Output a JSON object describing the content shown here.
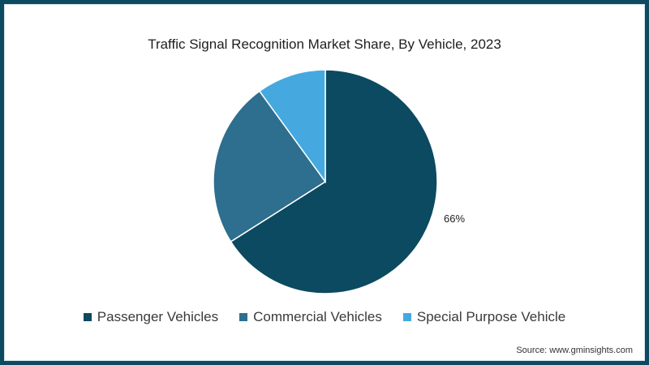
{
  "chart": {
    "title": "Traffic Signal Recognition Market Share, By Vehicle, 2023",
    "source": "Source: www.gminsights.com",
    "data_label": "66%",
    "legend": [
      {
        "label": "Passenger Vehicles",
        "color": "#0b4a60"
      },
      {
        "label": "Commercial Vehicles",
        "color": "#2e6e8e"
      },
      {
        "label": "Special Purpose Vehicle",
        "color": "#45a9e0"
      }
    ],
    "frame_color": "#0b4a60"
  },
  "chart_data": {
    "type": "pie",
    "title": "Traffic Signal Recognition Market Share, By Vehicle, 2023",
    "categories": [
      "Passenger Vehicles",
      "Commercial Vehicles",
      "Special Purpose Vehicle"
    ],
    "values": [
      66,
      24,
      10
    ],
    "colors": [
      "#0b4a60",
      "#2e6e8e",
      "#45a9e0"
    ],
    "data_labels": [
      "66%",
      "",
      ""
    ],
    "legend_position": "bottom",
    "start_angle": "12 o'clock",
    "direction": "clockwise from Passenger Vehicles",
    "source": "Source: www.gminsights.com"
  }
}
